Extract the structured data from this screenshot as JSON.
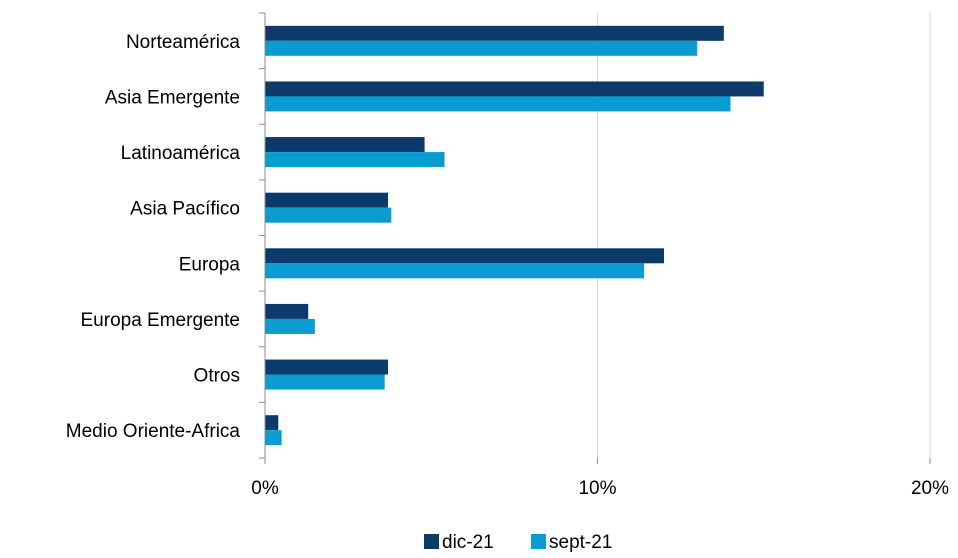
{
  "chart_data": {
    "type": "bar",
    "orientation": "horizontal",
    "categories": [
      "Norteamérica",
      "Asia Emergente",
      "Latinoamérica",
      "Asia Pacífico",
      "Europa",
      "Europa Emergente",
      "Otros",
      "Medio Oriente-Africa"
    ],
    "series": [
      {
        "name": "dic-21",
        "color": "#0b3a6b",
        "values": [
          13.8,
          15.0,
          4.8,
          3.7,
          12.0,
          1.3,
          3.7,
          0.4
        ]
      },
      {
        "name": "sept-21",
        "color": "#0a9cd0",
        "values": [
          13.0,
          14.0,
          5.4,
          3.8,
          11.4,
          1.5,
          3.6,
          0.5
        ]
      }
    ],
    "xlim": [
      0,
      20
    ],
    "xticks": [
      0,
      10,
      20
    ],
    "xtick_labels": [
      "0%",
      "10%",
      "20%"
    ],
    "title": "",
    "xlabel": "",
    "ylabel": "",
    "grid": "vertical gridlines",
    "legend_position": "bottom-center"
  }
}
